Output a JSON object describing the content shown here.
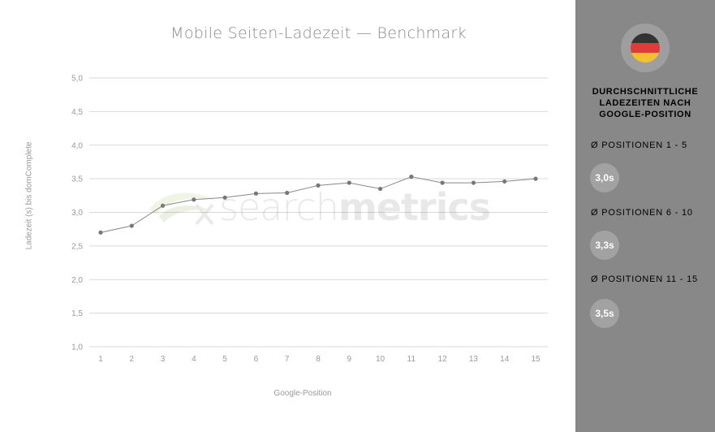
{
  "chart_data": {
    "type": "line",
    "title": "Mobile Seiten-Ladezeit — Benchmark",
    "xlabel": "Google-Position",
    "ylabel": "Ladezeit (s) bis domComplete",
    "x": [
      1,
      2,
      3,
      4,
      5,
      6,
      7,
      8,
      9,
      10,
      11,
      12,
      13,
      14,
      15
    ],
    "x_tick_labels": [
      "1",
      "2",
      "3",
      "4",
      "5",
      "6",
      "7",
      "8",
      "9",
      "10",
      "11",
      "12",
      "13",
      "14",
      "15"
    ],
    "series": [
      {
        "values": [
          2.7,
          2.8,
          3.1,
          3.19,
          3.22,
          3.28,
          3.29,
          3.4,
          3.44,
          3.35,
          3.53,
          3.44,
          3.44,
          3.46,
          3.5
        ]
      }
    ],
    "ylim": [
      1.0,
      5.0
    ],
    "y_ticks": [
      1.0,
      1.5,
      2.0,
      2.5,
      3.0,
      3.5,
      4.0,
      4.5,
      5.0
    ],
    "y_tick_labels": [
      "1,0",
      "1,5",
      "2,0",
      "2,5",
      "3,0",
      "3,5",
      "4,0",
      "4,5",
      "5,0"
    ],
    "grid": "horizontal",
    "line_color": "#888888"
  },
  "watermark": {
    "light": "search",
    "bold": "metrics"
  },
  "sidebar": {
    "flag_colors": [
      "#333333",
      "#e03a3a",
      "#f2c12e"
    ],
    "heading_lines": [
      "DURCHSCHNITTLICHE",
      "LADEZEITEN NACH",
      "GOOGLE-POSITION"
    ],
    "groups": [
      {
        "label": "Ø POSITIONEN 1 - 5",
        "value": "3,0s"
      },
      {
        "label": "Ø POSITIONEN 6 - 10",
        "value": "3,3s"
      },
      {
        "label": "Ø POSITIONEN 11 - 15",
        "value": "3,5s"
      }
    ],
    "background": "#888888"
  }
}
